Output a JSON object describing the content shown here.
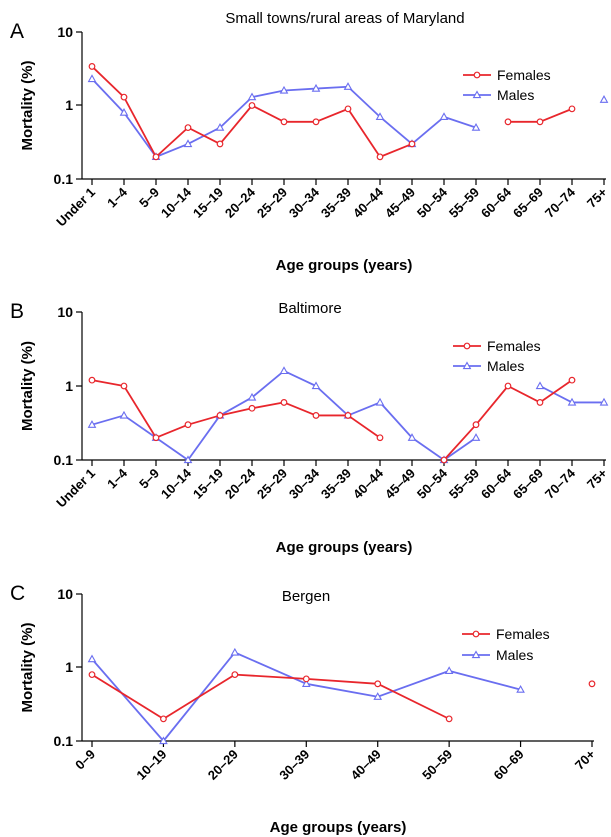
{
  "colors": {
    "females": "#e8262c",
    "males": "#6a6ef0",
    "axis": "#000000"
  },
  "chart_data": [
    {
      "type": "line",
      "panel_label": "A",
      "title": "Small towns/rural areas of Maryland",
      "xlabel": "Age groups (years)",
      "ylabel": "Mortality (%)",
      "yscale": "log",
      "ylim": [
        0.1,
        10
      ],
      "yticks": [
        "0.1",
        "1",
        "10"
      ],
      "legend_position": "right",
      "categories": [
        "Under 1",
        "1–4",
        "5–9",
        "10–14",
        "15–19",
        "20–24",
        "25–29",
        "30–34",
        "35–39",
        "40–44",
        "45–49",
        "50–54",
        "55–59",
        "60–64",
        "65–69",
        "70–74",
        "75+"
      ],
      "series": [
        {
          "name": "Females",
          "marker": "circle",
          "values": [
            3.4,
            1.3,
            0.2,
            0.5,
            0.3,
            1.0,
            0.6,
            0.6,
            0.9,
            0.2,
            0.3,
            null,
            null,
            0.6,
            0.6,
            0.9,
            null
          ]
        },
        {
          "name": "Males",
          "marker": "triangle",
          "values": [
            2.3,
            0.8,
            0.2,
            0.3,
            0.5,
            1.3,
            1.6,
            1.7,
            1.8,
            0.7,
            0.3,
            0.7,
            0.5,
            null,
            null,
            null,
            1.2
          ]
        }
      ]
    },
    {
      "type": "line",
      "panel_label": "B",
      "title": "Baltimore",
      "xlabel": "Age groups (years)",
      "ylabel": "Mortality (%)",
      "yscale": "log",
      "ylim": [
        0.1,
        10
      ],
      "yticks": [
        "0.1",
        "1",
        "10"
      ],
      "legend_position": "right",
      "categories": [
        "Under 1",
        "1–4",
        "5–9",
        "10–14",
        "15–19",
        "20–24",
        "25–29",
        "30–34",
        "35–39",
        "40–44",
        "45–49",
        "50–54",
        "55–59",
        "60–64",
        "65–69",
        "70–74",
        "75+"
      ],
      "series": [
        {
          "name": "Females",
          "marker": "circle",
          "values": [
            1.2,
            1.0,
            0.2,
            0.3,
            0.4,
            0.5,
            0.6,
            0.4,
            0.4,
            0.2,
            null,
            0.1,
            0.3,
            1.0,
            0.6,
            1.2,
            null
          ]
        },
        {
          "name": "Males",
          "marker": "triangle",
          "values": [
            0.3,
            0.4,
            0.2,
            0.1,
            0.4,
            0.7,
            1.6,
            1.0,
            0.4,
            0.6,
            0.2,
            0.1,
            0.2,
            null,
            1.0,
            0.6,
            0.6
          ]
        }
      ]
    },
    {
      "type": "line",
      "panel_label": "C",
      "title": "Bergen",
      "xlabel": "Age groups (years)",
      "ylabel": "Mortality (%)",
      "yscale": "log",
      "ylim": [
        0.1,
        10
      ],
      "yticks": [
        "0.1",
        "1",
        "10"
      ],
      "legend_position": "right",
      "categories": [
        "0–9",
        "10–19",
        "20–29",
        "30–39",
        "40–49",
        "50–59",
        "60–69",
        "70+"
      ],
      "series": [
        {
          "name": "Females",
          "marker": "circle",
          "values": [
            0.8,
            0.2,
            0.8,
            0.7,
            0.6,
            0.2,
            null,
            0.6
          ]
        },
        {
          "name": "Males",
          "marker": "triangle",
          "values": [
            1.3,
            0.1,
            1.6,
            0.6,
            0.4,
            0.9,
            0.5,
            null
          ]
        }
      ]
    }
  ]
}
